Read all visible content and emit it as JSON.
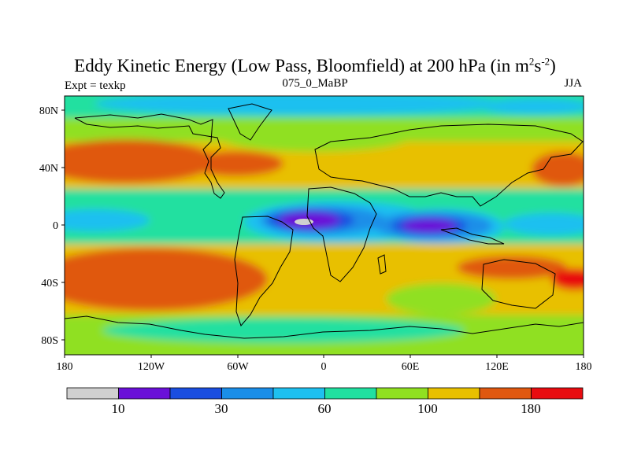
{
  "header": {
    "title_main": "Eddy Kinetic Energy (Low Pass, Bloomfield) at 200 hPa (in m",
    "title_sup1": "2",
    "title_mid": "s",
    "title_sup2": "-2",
    "title_end": ")",
    "left": "Expt = texkp",
    "center": "075_0_MaBP",
    "right": "JJA"
  },
  "y_ticks": [
    "80N",
    "40N",
    "0",
    "40S",
    "80S"
  ],
  "x_ticks": [
    "180",
    "120W",
    "60W",
    "0",
    "60E",
    "120E",
    "180"
  ],
  "colorbar": {
    "colors": [
      "#d0d0d0",
      "#6a10d8",
      "#1a4ee0",
      "#1a8ee8",
      "#1ec0f0",
      "#20e0a0",
      "#90e020",
      "#e8c000",
      "#e05810",
      "#e80c10"
    ],
    "labels": [
      "10",
      "30",
      "60",
      "100",
      "180"
    ]
  }
}
